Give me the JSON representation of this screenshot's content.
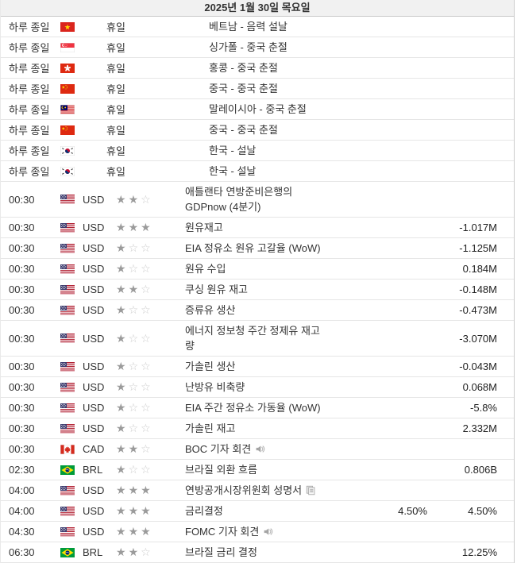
{
  "title": {
    "date": "2025년 1월 30일 목요일"
  },
  "colors": {
    "header_bg": "#f1f1f1",
    "row_border": "#e6e6e6",
    "text": "#333333",
    "star_filled": "#9b9b9b",
    "star_empty": "#cccccc"
  },
  "rows": [
    {
      "type": "holiday",
      "time": "하루 종일",
      "country": "vietnam",
      "holiday_label": "휴일",
      "event": "베트남 - 음력 설날"
    },
    {
      "type": "holiday",
      "time": "하루 종일",
      "country": "singapore",
      "holiday_label": "휴일",
      "event": "싱가폴 - 중국 춘절"
    },
    {
      "type": "holiday",
      "time": "하루 종일",
      "country": "hong-kong",
      "holiday_label": "휴일",
      "event": "홍콩 - 중국 춘절"
    },
    {
      "type": "holiday",
      "time": "하루 종일",
      "country": "china",
      "holiday_label": "휴일",
      "event": "중국 - 중국 춘절"
    },
    {
      "type": "holiday",
      "time": "하루 종일",
      "country": "malaysia",
      "holiday_label": "휴일",
      "event": "말레이시아 - 중국 춘절"
    },
    {
      "type": "holiday",
      "time": "하루 종일",
      "country": "china",
      "holiday_label": "휴일",
      "event": "중국 - 중국 춘절"
    },
    {
      "type": "holiday",
      "time": "하루 종일",
      "country": "south-korea",
      "holiday_label": "휴일",
      "event": "한국 - 설날"
    },
    {
      "type": "holiday",
      "time": "하루 종일",
      "country": "south-korea",
      "holiday_label": "휴일",
      "event": "한국 - 설날"
    },
    {
      "type": "event",
      "time": "00:30",
      "country": "usa",
      "currency": "USD",
      "importance": 2,
      "event": "애틀랜타 연방준비은행의\nGDPnow (4분기)",
      "icon": "",
      "forecast": "",
      "previous": ""
    },
    {
      "type": "event",
      "time": "00:30",
      "country": "usa",
      "currency": "USD",
      "importance": 3,
      "event": "원유재고",
      "icon": "",
      "forecast": "",
      "previous": "-1.017M"
    },
    {
      "type": "event",
      "time": "00:30",
      "country": "usa",
      "currency": "USD",
      "importance": 1,
      "event": "EIA 정유소 원유 고갈율 (WoW)",
      "icon": "",
      "forecast": "",
      "previous": "-1.125M"
    },
    {
      "type": "event",
      "time": "00:30",
      "country": "usa",
      "currency": "USD",
      "importance": 1,
      "event": "원유 수입",
      "icon": "",
      "forecast": "",
      "previous": "0.184M"
    },
    {
      "type": "event",
      "time": "00:30",
      "country": "usa",
      "currency": "USD",
      "importance": 2,
      "event": "쿠싱 원유 재고",
      "icon": "",
      "forecast": "",
      "previous": "-0.148M"
    },
    {
      "type": "event",
      "time": "00:30",
      "country": "usa",
      "currency": "USD",
      "importance": 1,
      "event": "증류유 생산",
      "icon": "",
      "forecast": "",
      "previous": "-0.473M"
    },
    {
      "type": "event",
      "time": "00:30",
      "country": "usa",
      "currency": "USD",
      "importance": 1,
      "event": "에너지 정보청 주간 정제유 재고\n량",
      "icon": "",
      "forecast": "",
      "previous": "-3.070M"
    },
    {
      "type": "event",
      "time": "00:30",
      "country": "usa",
      "currency": "USD",
      "importance": 1,
      "event": "가솔린 생산",
      "icon": "",
      "forecast": "",
      "previous": "-0.043M"
    },
    {
      "type": "event",
      "time": "00:30",
      "country": "usa",
      "currency": "USD",
      "importance": 1,
      "event": "난방유 비축량",
      "icon": "",
      "forecast": "",
      "previous": "0.068M"
    },
    {
      "type": "event",
      "time": "00:30",
      "country": "usa",
      "currency": "USD",
      "importance": 1,
      "event": "EIA 주간 정유소 가동율 (WoW)",
      "icon": "",
      "forecast": "",
      "previous": "-5.8%"
    },
    {
      "type": "event",
      "time": "00:30",
      "country": "usa",
      "currency": "USD",
      "importance": 1,
      "event": "가솔린 재고",
      "icon": "",
      "forecast": "",
      "previous": "2.332M"
    },
    {
      "type": "event",
      "time": "00:30",
      "country": "canada",
      "currency": "CAD",
      "importance": 2,
      "event": "BOC 기자 회견",
      "icon": "speaker",
      "forecast": "",
      "previous": ""
    },
    {
      "type": "event",
      "time": "02:30",
      "country": "brazil",
      "currency": "BRL",
      "importance": 1,
      "event": "브라질 외환 흐름",
      "icon": "",
      "forecast": "",
      "previous": "0.806B"
    },
    {
      "type": "event",
      "time": "04:00",
      "country": "usa",
      "currency": "USD",
      "importance": 3,
      "event": "연방공개시장위원회 성명서",
      "icon": "report",
      "forecast": "",
      "previous": ""
    },
    {
      "type": "event",
      "time": "04:00",
      "country": "usa",
      "currency": "USD",
      "importance": 3,
      "event": "금리결정",
      "icon": "",
      "forecast": "4.50%",
      "previous": "4.50%"
    },
    {
      "type": "event",
      "time": "04:30",
      "country": "usa",
      "currency": "USD",
      "importance": 3,
      "event": "FOMC 기자 회견",
      "icon": "speaker",
      "forecast": "",
      "previous": ""
    },
    {
      "type": "event",
      "time": "06:30",
      "country": "brazil",
      "currency": "BRL",
      "importance": 2,
      "event": "브라질 금리 결정",
      "icon": "",
      "forecast": "",
      "previous": "12.25%"
    }
  ]
}
